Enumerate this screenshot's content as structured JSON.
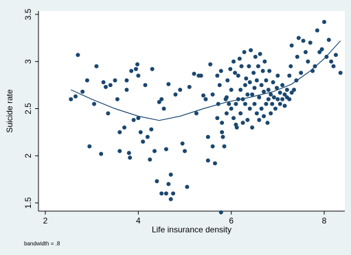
{
  "chart_data": {
    "type": "scatter",
    "xlabel": "Life insurance density",
    "ylabel": "Suicide rate",
    "xlim": [
      2,
      8.4
    ],
    "ylim": [
      1.5,
      3.5
    ],
    "xticks": [
      "2",
      "4",
      "6",
      "8"
    ],
    "yticks": [
      "1.5",
      "2",
      "2.5",
      "3",
      "3.5"
    ],
    "note": "bandwidth = .8",
    "grid": false,
    "colors": {
      "background": "#eaf2f3",
      "plot": "#ffffff",
      "points": "#1a476f",
      "line": "#1a476f"
    },
    "smooth": [
      [
        2.55,
        2.7
      ],
      [
        3.0,
        2.6
      ],
      [
        3.5,
        2.5
      ],
      [
        4.0,
        2.42
      ],
      [
        4.45,
        2.375
      ],
      [
        4.9,
        2.42
      ],
      [
        5.4,
        2.5
      ],
      [
        5.9,
        2.57
      ],
      [
        6.4,
        2.62
      ],
      [
        6.9,
        2.68
      ],
      [
        7.3,
        2.76
      ],
      [
        7.7,
        2.9
      ],
      [
        8.0,
        3.03
      ],
      [
        8.35,
        3.22
      ]
    ],
    "points": [
      [
        2.55,
        2.6
      ],
      [
        2.65,
        2.63
      ],
      [
        2.7,
        3.07
      ],
      [
        2.8,
        2.68
      ],
      [
        2.95,
        2.1
      ],
      [
        2.9,
        2.8
      ],
      [
        3.05,
        2.55
      ],
      [
        3.1,
        2.95
      ],
      [
        3.2,
        2.02
      ],
      [
        3.25,
        2.78
      ],
      [
        3.3,
        2.73
      ],
      [
        3.35,
        2.45
      ],
      [
        3.4,
        2.75
      ],
      [
        3.5,
        2.8
      ],
      [
        3.55,
        2.6
      ],
      [
        3.6,
        2.25
      ],
      [
        3.6,
        2.05
      ],
      [
        3.7,
        2.3
      ],
      [
        3.75,
        2.8
      ],
      [
        3.75,
        2.7
      ],
      [
        3.8,
        2.03
      ],
      [
        3.82,
        1.98
      ],
      [
        3.85,
        2.9
      ],
      [
        3.9,
        2.38
      ],
      [
        3.95,
        2.92
      ],
      [
        3.98,
        2.97
      ],
      [
        4.0,
        2.85
      ],
      [
        4.0,
        2.4
      ],
      [
        4.05,
        2.25
      ],
      [
        4.1,
        2.15
      ],
      [
        4.15,
        2.75
      ],
      [
        4.2,
        2.2
      ],
      [
        4.25,
        1.96
      ],
      [
        4.28,
        2.28
      ],
      [
        4.3,
        2.92
      ],
      [
        4.35,
        2.05
      ],
      [
        4.4,
        1.73
      ],
      [
        4.45,
        2.57
      ],
      [
        4.5,
        2.6
      ],
      [
        4.55,
        2.5
      ],
      [
        4.5,
        1.6
      ],
      [
        4.6,
        2.07
      ],
      [
        4.6,
        1.6
      ],
      [
        4.65,
        1.7
      ],
      [
        4.65,
        2.76
      ],
      [
        4.7,
        1.8
      ],
      [
        4.7,
        1.54
      ],
      [
        4.75,
        1.6
      ],
      [
        4.8,
        2.65
      ],
      [
        4.9,
        2.7
      ],
      [
        4.95,
        2.13
      ],
      [
        5.0,
        2.05
      ],
      [
        5.05,
        1.67
      ],
      [
        5.1,
        2.73
      ],
      [
        5.2,
        2.87
      ],
      [
        5.25,
        2.45
      ],
      [
        5.3,
        2.85
      ],
      [
        5.35,
        2.85
      ],
      [
        5.4,
        2.64
      ],
      [
        5.45,
        2.6
      ],
      [
        5.5,
        2.2
      ],
      [
        5.5,
        1.95
      ],
      [
        5.55,
        2.97
      ],
      [
        5.6,
        2.1
      ],
      [
        5.6,
        2.65
      ],
      [
        5.65,
        1.92
      ],
      [
        5.7,
        2.4
      ],
      [
        5.7,
        2.85
      ],
      [
        5.72,
        2.55
      ],
      [
        5.75,
        2.75
      ],
      [
        5.78,
        1.4
      ],
      [
        5.78,
        2.9
      ],
      [
        5.8,
        2.25
      ],
      [
        5.8,
        2.35
      ],
      [
        5.82,
        2.2
      ],
      [
        5.85,
        2.1
      ],
      [
        5.88,
        2.6
      ],
      [
        5.9,
        2.62
      ],
      [
        5.9,
        2.45
      ],
      [
        5.92,
        2.8
      ],
      [
        5.95,
        2.55
      ],
      [
        5.98,
        2.92
      ],
      [
        6.0,
        2.7
      ],
      [
        6.0,
        2.5
      ],
      [
        6.05,
        3.0
      ],
      [
        6.05,
        2.4
      ],
      [
        6.08,
        2.88
      ],
      [
        6.1,
        2.33
      ],
      [
        6.1,
        2.55
      ],
      [
        6.12,
        2.3
      ],
      [
        6.15,
        2.85
      ],
      [
        6.15,
        2.6
      ],
      [
        6.18,
        3.03
      ],
      [
        6.2,
        2.7
      ],
      [
        6.2,
        2.45
      ],
      [
        6.22,
        2.95
      ],
      [
        6.25,
        2.6
      ],
      [
        6.25,
        2.35
      ],
      [
        6.28,
        3.1
      ],
      [
        6.3,
        2.75
      ],
      [
        6.3,
        2.55
      ],
      [
        6.32,
        2.82
      ],
      [
        6.35,
        2.65
      ],
      [
        6.35,
        2.38
      ],
      [
        6.38,
        2.95
      ],
      [
        6.4,
        2.78
      ],
      [
        6.4,
        2.5
      ],
      [
        6.42,
        3.12
      ],
      [
        6.45,
        2.65
      ],
      [
        6.45,
        2.3
      ],
      [
        6.48,
        2.88
      ],
      [
        6.5,
        2.72
      ],
      [
        6.5,
        2.55
      ],
      [
        6.52,
        3.05
      ],
      [
        6.55,
        2.8
      ],
      [
        6.55,
        2.45
      ],
      [
        6.58,
        2.95
      ],
      [
        6.6,
        2.62
      ],
      [
        6.6,
        2.38
      ],
      [
        6.62,
        3.08
      ],
      [
        6.65,
        2.75
      ],
      [
        6.65,
        2.5
      ],
      [
        6.68,
        2.9
      ],
      [
        6.7,
        2.68
      ],
      [
        6.7,
        2.42
      ],
      [
        6.72,
        3.0
      ],
      [
        6.75,
        2.8
      ],
      [
        6.75,
        2.55
      ],
      [
        6.78,
        2.35
      ],
      [
        6.8,
        2.7
      ],
      [
        6.8,
        2.6
      ],
      [
        6.82,
        2.9
      ],
      [
        6.85,
        2.65
      ],
      [
        6.85,
        2.45
      ],
      [
        6.88,
        2.55
      ],
      [
        6.9,
        2.78
      ],
      [
        6.92,
        2.62
      ],
      [
        6.95,
        2.5
      ],
      [
        6.98,
        2.72
      ],
      [
        7.0,
        2.6
      ],
      [
        7.0,
        2.85
      ],
      [
        7.05,
        2.55
      ],
      [
        7.05,
        2.67
      ],
      [
        7.1,
        2.6
      ],
      [
        7.1,
        2.75
      ],
      [
        7.15,
        2.65
      ],
      [
        7.15,
        2.53
      ],
      [
        7.2,
        2.62
      ],
      [
        7.2,
        2.7
      ],
      [
        7.25,
        2.6
      ],
      [
        7.25,
        2.85
      ],
      [
        7.28,
        2.95
      ],
      [
        7.3,
        3.17
      ],
      [
        7.3,
        2.67
      ],
      [
        7.35,
        2.7
      ],
      [
        7.4,
        2.8
      ],
      [
        7.42,
        3.05
      ],
      [
        7.45,
        3.25
      ],
      [
        7.5,
        2.88
      ],
      [
        7.55,
        3.22
      ],
      [
        7.6,
        3.1
      ],
      [
        7.65,
        3.0
      ],
      [
        7.7,
        3.2
      ],
      [
        7.75,
        2.9
      ],
      [
        7.8,
        2.95
      ],
      [
        7.85,
        3.33
      ],
      [
        7.9,
        3.1
      ],
      [
        7.95,
        3.13
      ],
      [
        8.0,
        3.42
      ],
      [
        8.05,
        3.05
      ],
      [
        8.1,
        3.23
      ],
      [
        8.15,
        3.0
      ],
      [
        8.2,
        2.95
      ],
      [
        8.25,
        3.07
      ],
      [
        8.35,
        2.88
      ]
    ]
  }
}
